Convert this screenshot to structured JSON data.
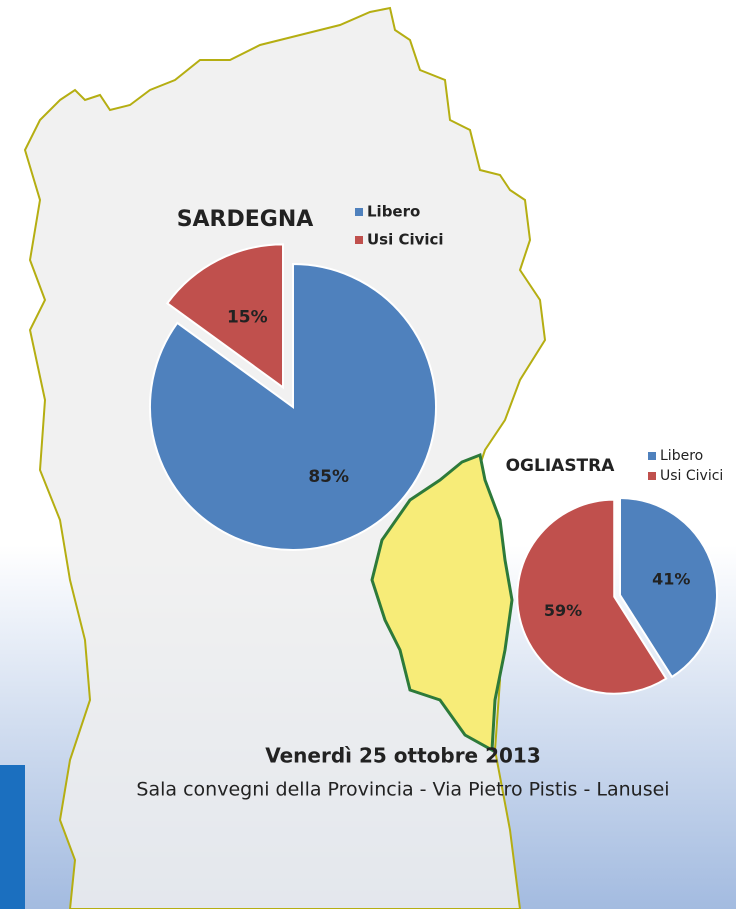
{
  "chart_data": [
    {
      "type": "pie",
      "title": "SARDEGNA",
      "categories": [
        "Libero",
        "Usi Civici"
      ],
      "values": [
        85,
        15
      ],
      "value_labels": [
        "85%",
        "15%"
      ],
      "colors": [
        "#4f81bd",
        "#c0504d"
      ]
    },
    {
      "type": "pie",
      "title": "OGLIASTRA",
      "categories": [
        "Libero",
        "Usi Civici"
      ],
      "values": [
        41,
        59
      ],
      "value_labels": [
        "41%",
        "59%"
      ],
      "colors": [
        "#4f81bd",
        "#c0504d"
      ]
    }
  ],
  "event": {
    "date": "Venerdì 25 ottobre 2013",
    "venue": "Sala convegni della Provincia - Via Pietro Pistis - Lanusei"
  }
}
